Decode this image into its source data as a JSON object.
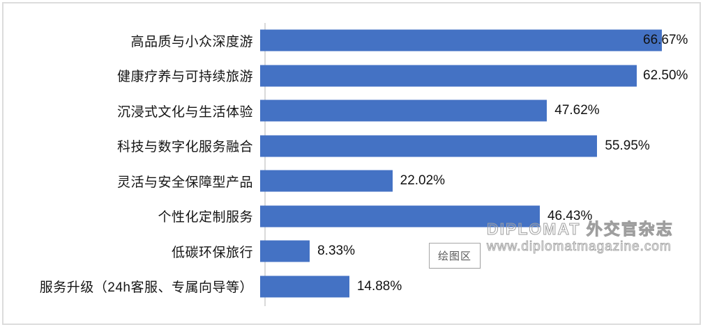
{
  "chart_data": {
    "type": "bar",
    "orientation": "horizontal",
    "title": "",
    "xlabel": "",
    "ylabel": "",
    "categories": [
      "高品质与小众深度游",
      "健康疗养与可持续旅游",
      "沉浸式文化与生活体验",
      "科技与数字化服务融合",
      "灵活与安全保障型产品",
      "个性化定制服务",
      "低碳环保旅行",
      "服务升级（24h客服、专属向导等）"
    ],
    "values": [
      66.67,
      62.5,
      47.62,
      55.95,
      22.02,
      46.43,
      8.33,
      14.88
    ],
    "value_labels": [
      "66.67%",
      "62.50%",
      "47.62%",
      "55.95%",
      "22.02%",
      "46.43%",
      "8.33%",
      "14.88%"
    ],
    "xlim": [
      0,
      70
    ],
    "grid": false,
    "legend": false,
    "bar_color": "#4472C4",
    "axis_line_color": "#D9D9D9"
  },
  "overlays": {
    "plot_area_tooltip": "绘图区",
    "watermark": {
      "line1": "DIPLOMAT 外交官杂志",
      "line2": "www.diplomatmagazine.com"
    }
  }
}
